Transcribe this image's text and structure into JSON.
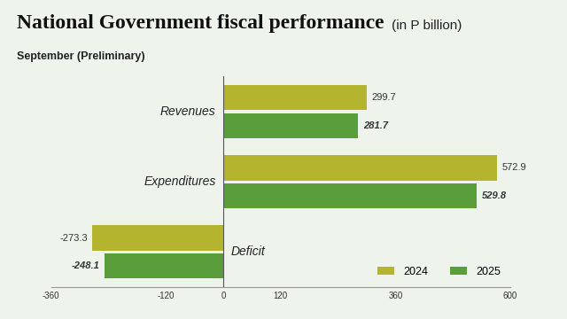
{
  "chart_data": {
    "type": "bar",
    "orientation": "horizontal",
    "title": "National Government fiscal performance",
    "annotations": [
      "(in P billion)"
    ],
    "subtitle": "September (Preliminary)",
    "categories": [
      "Revenues",
      "Expenditures",
      "Deficit"
    ],
    "series": [
      {
        "name": "2024",
        "color": "#b5b42f",
        "values": [
          299.7,
          572.9,
          -273.3
        ]
      },
      {
        "name": "2025",
        "color": "#5a9e3c",
        "values": [
          281.7,
          529.8,
          -248.1
        ]
      }
    ],
    "xlim": [
      -360,
      600
    ],
    "xticks": [
      -360,
      -120,
      0,
      120,
      360,
      600
    ],
    "data_labels": true,
    "legend": "lower right",
    "grid": false,
    "tick_labels": "x"
  }
}
